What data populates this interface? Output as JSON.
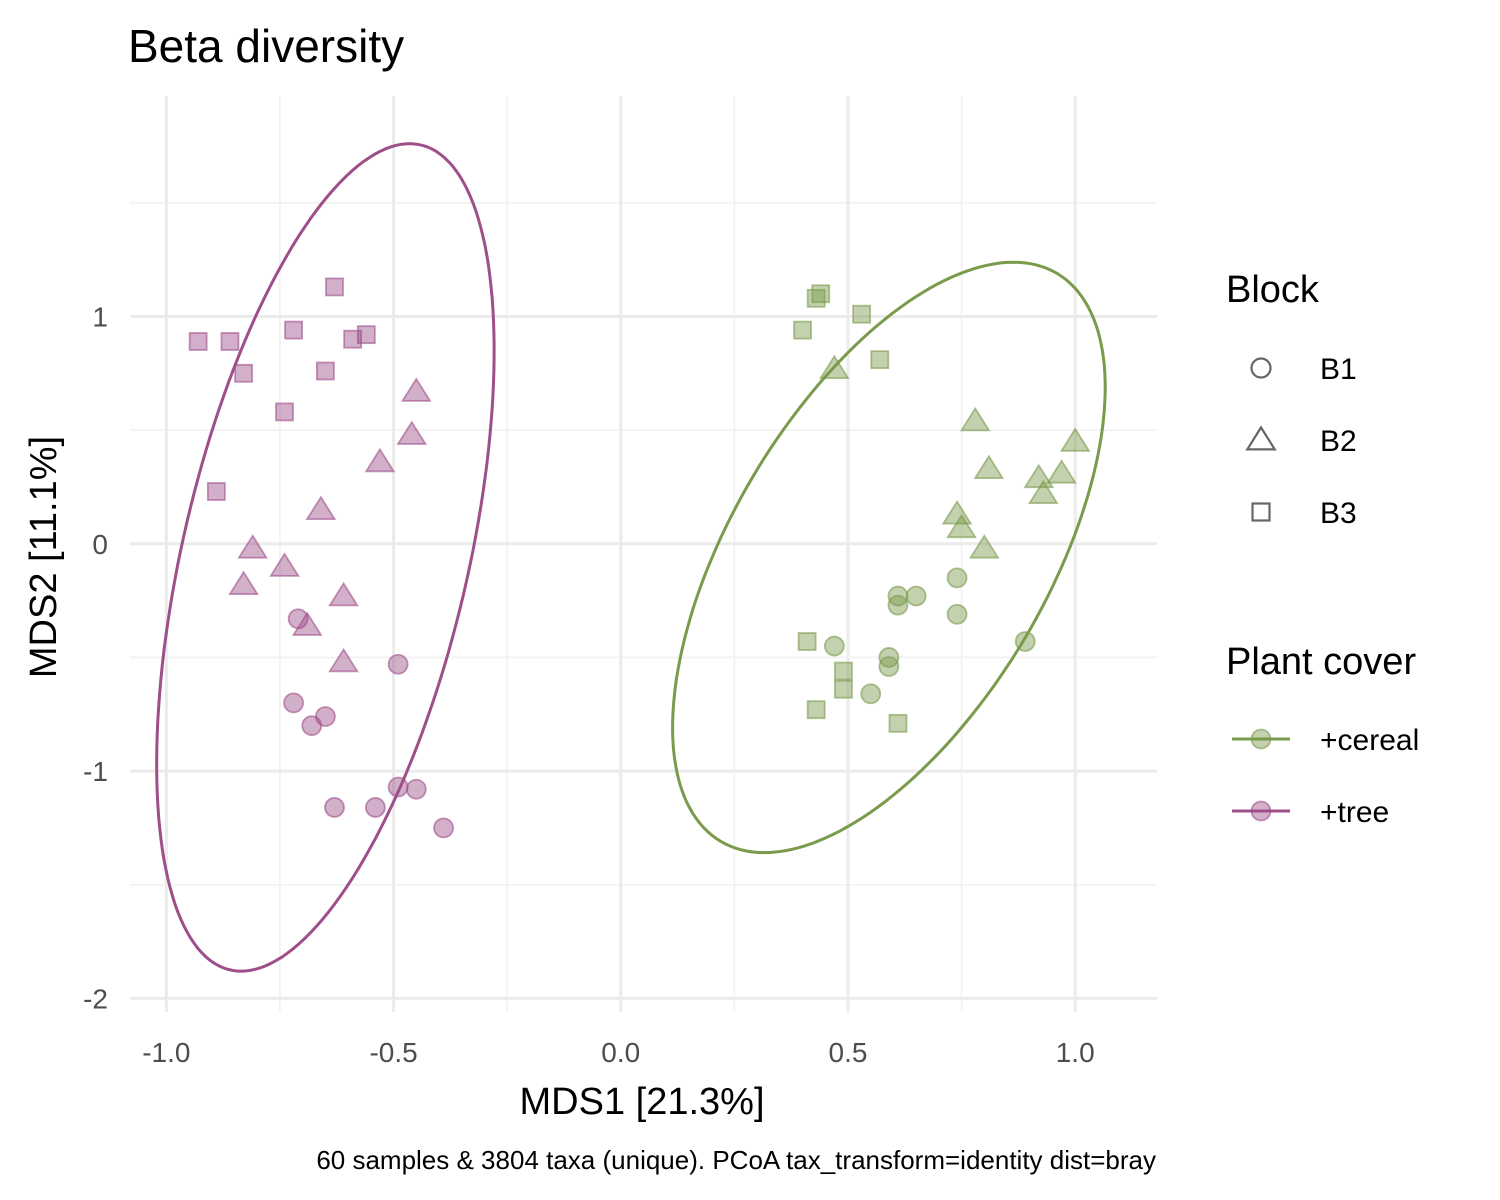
{
  "chart_data": {
    "type": "scatter",
    "title": "Beta diversity",
    "xlabel": "MDS1 [21.3%]",
    "ylabel": "MDS2 [11.1%]",
    "caption": "60 samples & 3804 taxa (unique). PCoA tax_transform=identity dist=bray",
    "xlim": [
      -1.08,
      1.18
    ],
    "ylim": [
      -2.06,
      1.97
    ],
    "x_ticks": [
      -1.0,
      -0.5,
      0.0,
      0.5,
      1.0
    ],
    "x_tick_labels": [
      "-1.0",
      "-0.5",
      "0.0",
      "0.5",
      "1.0"
    ],
    "y_ticks": [
      -2,
      -1,
      0,
      1
    ],
    "y_tick_labels": [
      "-2",
      "-1",
      "0",
      "1"
    ],
    "grid": true,
    "legend_position": "right",
    "shape_legend": {
      "title": "Block",
      "items": [
        {
          "label": "B1",
          "shape": "circle"
        },
        {
          "label": "B2",
          "shape": "triangle"
        },
        {
          "label": "B3",
          "shape": "square"
        }
      ]
    },
    "color_legend": {
      "title": "Plant cover",
      "items": [
        {
          "label": "+cereal",
          "color": "#7a9a4c"
        },
        {
          "label": "+tree",
          "color": "#9e4f8a"
        }
      ]
    },
    "series": [
      {
        "name": "+cereal",
        "color": "#7a9a4c",
        "ellipse": {
          "cx": 0.59,
          "cy": -0.06,
          "rx": 0.38,
          "ry": 1.33,
          "angle_deg": -13
        },
        "points": [
          {
            "x": 0.61,
            "y": -0.23,
            "block": "B1"
          },
          {
            "x": 0.65,
            "y": -0.23,
            "block": "B1"
          },
          {
            "x": 0.61,
            "y": -0.27,
            "block": "B1"
          },
          {
            "x": 0.74,
            "y": -0.15,
            "block": "B1"
          },
          {
            "x": 0.74,
            "y": -0.31,
            "block": "B1"
          },
          {
            "x": 0.89,
            "y": -0.43,
            "block": "B1"
          },
          {
            "x": 0.47,
            "y": -0.45,
            "block": "B1"
          },
          {
            "x": 0.59,
            "y": -0.5,
            "block": "B1"
          },
          {
            "x": 0.59,
            "y": -0.54,
            "block": "B1"
          },
          {
            "x": 0.55,
            "y": -0.66,
            "block": "B1"
          },
          {
            "x": 0.47,
            "y": 0.77,
            "block": "B2"
          },
          {
            "x": 0.78,
            "y": 0.54,
            "block": "B2"
          },
          {
            "x": 0.81,
            "y": 0.33,
            "block": "B2"
          },
          {
            "x": 1.0,
            "y": 0.45,
            "block": "B2"
          },
          {
            "x": 0.92,
            "y": 0.29,
            "block": "B2"
          },
          {
            "x": 0.97,
            "y": 0.31,
            "block": "B2"
          },
          {
            "x": 0.93,
            "y": 0.22,
            "block": "B2"
          },
          {
            "x": 0.74,
            "y": 0.13,
            "block": "B2"
          },
          {
            "x": 0.75,
            "y": 0.07,
            "block": "B2"
          },
          {
            "x": 0.8,
            "y": -0.02,
            "block": "B2"
          },
          {
            "x": 0.43,
            "y": 1.08,
            "block": "B3"
          },
          {
            "x": 0.44,
            "y": 1.1,
            "block": "B3"
          },
          {
            "x": 0.4,
            "y": 0.94,
            "block": "B3"
          },
          {
            "x": 0.53,
            "y": 1.01,
            "block": "B3"
          },
          {
            "x": 0.57,
            "y": 0.81,
            "block": "B3"
          },
          {
            "x": 0.41,
            "y": -0.43,
            "block": "B3"
          },
          {
            "x": 0.49,
            "y": -0.56,
            "block": "B3"
          },
          {
            "x": 0.49,
            "y": -0.64,
            "block": "B3"
          },
          {
            "x": 0.43,
            "y": -0.73,
            "block": "B3"
          },
          {
            "x": 0.61,
            "y": -0.79,
            "block": "B3"
          }
        ]
      },
      {
        "name": "+tree",
        "color": "#9e4f8a",
        "ellipse": {
          "cx": -0.65,
          "cy": -0.06,
          "rx": 0.32,
          "ry": 1.83,
          "angle_deg": -6
        },
        "points": [
          {
            "x": -0.71,
            "y": -0.33,
            "block": "B1"
          },
          {
            "x": -0.49,
            "y": -0.53,
            "block": "B1"
          },
          {
            "x": -0.72,
            "y": -0.7,
            "block": "B1"
          },
          {
            "x": -0.68,
            "y": -0.8,
            "block": "B1"
          },
          {
            "x": -0.65,
            "y": -0.76,
            "block": "B1"
          },
          {
            "x": -0.63,
            "y": -1.16,
            "block": "B1"
          },
          {
            "x": -0.54,
            "y": -1.16,
            "block": "B1"
          },
          {
            "x": -0.49,
            "y": -1.07,
            "block": "B1"
          },
          {
            "x": -0.45,
            "y": -1.08,
            "block": "B1"
          },
          {
            "x": -0.39,
            "y": -1.25,
            "block": "B1"
          },
          {
            "x": -0.45,
            "y": 0.67,
            "block": "B2"
          },
          {
            "x": -0.46,
            "y": 0.48,
            "block": "B2"
          },
          {
            "x": -0.53,
            "y": 0.36,
            "block": "B2"
          },
          {
            "x": -0.66,
            "y": 0.15,
            "block": "B2"
          },
          {
            "x": -0.81,
            "y": -0.02,
            "block": "B2"
          },
          {
            "x": -0.74,
            "y": -0.1,
            "block": "B2"
          },
          {
            "x": -0.83,
            "y": -0.18,
            "block": "B2"
          },
          {
            "x": -0.61,
            "y": -0.23,
            "block": "B2"
          },
          {
            "x": -0.69,
            "y": -0.36,
            "block": "B2"
          },
          {
            "x": -0.61,
            "y": -0.52,
            "block": "B2"
          },
          {
            "x": -0.63,
            "y": 1.13,
            "block": "B3"
          },
          {
            "x": -0.72,
            "y": 0.94,
            "block": "B3"
          },
          {
            "x": -0.56,
            "y": 0.92,
            "block": "B3"
          },
          {
            "x": -0.59,
            "y": 0.9,
            "block": "B3"
          },
          {
            "x": -0.93,
            "y": 0.89,
            "block": "B3"
          },
          {
            "x": -0.86,
            "y": 0.89,
            "block": "B3"
          },
          {
            "x": -0.83,
            "y": 0.75,
            "block": "B3"
          },
          {
            "x": -0.65,
            "y": 0.76,
            "block": "B3"
          },
          {
            "x": -0.74,
            "y": 0.58,
            "block": "B3"
          },
          {
            "x": -0.89,
            "y": 0.23,
            "block": "B3"
          }
        ]
      }
    ]
  }
}
